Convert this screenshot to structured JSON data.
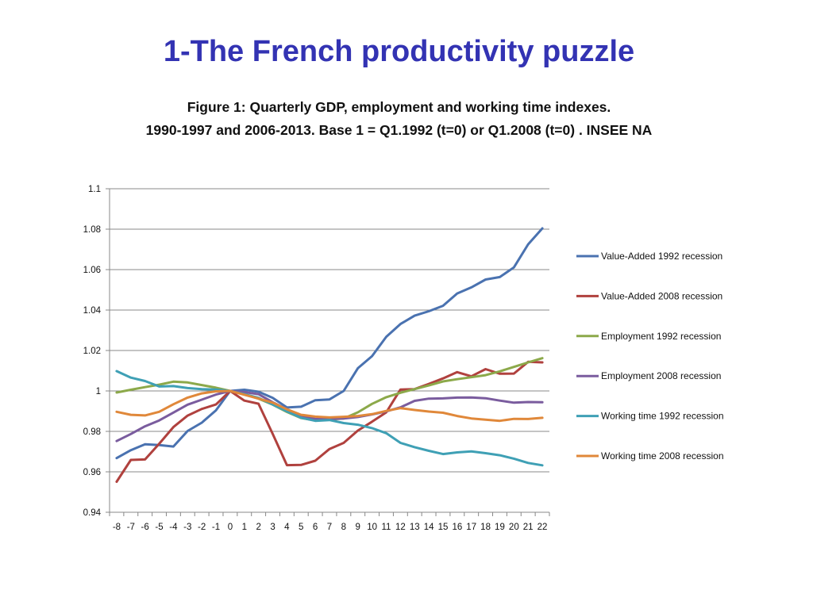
{
  "slide": {
    "title": "1-The French productivity puzzle",
    "subtitle_line1": "Figure 1: Quarterly GDP, employment and working time indexes.",
    "subtitle_line2": "1990-1997 and 2006-2013. Base 1 = Q1.1992 (t=0) or Q1.2008 (t=0) . INSEE NA"
  },
  "chart_data": {
    "type": "line",
    "title": "",
    "xlabel": "",
    "ylabel": "",
    "x": [
      -8,
      -7,
      -6,
      -5,
      -4,
      -3,
      -2,
      -1,
      0,
      1,
      2,
      3,
      4,
      5,
      6,
      7,
      8,
      9,
      10,
      11,
      12,
      13,
      14,
      15,
      16,
      17,
      18,
      19,
      20,
      21,
      22
    ],
    "ylim": [
      0.94,
      1.1
    ],
    "yticks": [
      0.94,
      0.96,
      0.98,
      1,
      1.02,
      1.04,
      1.06,
      1.08,
      1.1
    ],
    "ytick_labels": [
      "0.94",
      "0.96",
      "0.98",
      "1",
      "1.02",
      "1.04",
      "1.06",
      "1.08",
      "1.1"
    ],
    "grid": "horizontal",
    "legend": "right",
    "series": [
      {
        "name": "Value-Added 1992 recession",
        "color": "#4a72b0",
        "values": [
          0.9668,
          0.9707,
          0.9736,
          0.9732,
          0.9725,
          0.9802,
          0.9843,
          0.9904,
          1.0,
          1.0006,
          0.9996,
          0.9966,
          0.9918,
          0.9922,
          0.9954,
          0.9958,
          1.0,
          1.0112,
          1.0172,
          1.0268,
          1.0331,
          1.0372,
          1.0394,
          1.0421,
          1.0482,
          1.0512,
          1.0551,
          1.0563,
          1.0611,
          1.0725,
          1.0804
        ]
      },
      {
        "name": "Value-Added 2008 recession",
        "color": "#b0413e",
        "values": [
          0.9551,
          0.9659,
          0.9661,
          0.9739,
          0.9821,
          0.9878,
          0.9911,
          0.9933,
          1.0,
          0.9952,
          0.9937,
          0.9787,
          0.9633,
          0.9634,
          0.9655,
          0.9713,
          0.9743,
          0.9804,
          0.9848,
          0.9894,
          1.0007,
          1.0009,
          1.0035,
          1.0062,
          1.0093,
          1.0072,
          1.0108,
          1.0085,
          1.0086,
          1.0144,
          1.0141
        ]
      },
      {
        "name": "Employment 1992 recession",
        "color": "#8ca94a",
        "values": [
          0.9992,
          1.0006,
          1.0019,
          1.0031,
          1.0046,
          1.0042,
          1.0029,
          1.0016,
          1.0,
          0.9984,
          0.9962,
          0.9932,
          0.9896,
          0.9866,
          0.9855,
          0.9859,
          0.9864,
          0.9894,
          0.9936,
          0.9969,
          0.9991,
          1.0009,
          1.0027,
          1.0047,
          1.0058,
          1.0068,
          1.0078,
          1.0097,
          1.0119,
          1.0141,
          1.0162
        ]
      },
      {
        "name": "Employment 2008 recession",
        "color": "#7a5c9e",
        "values": [
          0.9752,
          0.9787,
          0.9825,
          0.9854,
          0.9893,
          0.9932,
          0.9957,
          0.9982,
          1.0,
          0.9994,
          0.9984,
          0.9944,
          0.9909,
          0.9877,
          0.9862,
          0.9861,
          0.9864,
          0.9871,
          0.9884,
          0.9899,
          0.9919,
          0.9951,
          0.9962,
          0.9963,
          0.9967,
          0.9968,
          0.9964,
          0.9952,
          0.9942,
          0.9945,
          0.9944
        ]
      },
      {
        "name": "Working time 1992 recession",
        "color": "#3fa0b5",
        "values": [
          1.0098,
          1.0066,
          1.0049,
          1.0022,
          1.0024,
          1.0014,
          1.0009,
          1.0007,
          1.0,
          0.9984,
          0.9966,
          0.9933,
          0.9899,
          0.9867,
          0.9852,
          0.9856,
          0.9841,
          0.9833,
          0.9816,
          0.9791,
          0.9743,
          0.9722,
          0.9704,
          0.9688,
          0.9696,
          0.9701,
          0.9692,
          0.9682,
          0.9665,
          0.9644,
          0.9632
        ]
      },
      {
        "name": "Working time 2008 recession",
        "color": "#e0883a",
        "values": [
          0.9897,
          0.9882,
          0.9879,
          0.9897,
          0.9934,
          0.9967,
          0.9988,
          0.9998,
          1.0,
          0.9981,
          0.9962,
          0.9942,
          0.9909,
          0.9882,
          0.9873,
          0.9869,
          0.9872,
          0.9876,
          0.9885,
          0.9901,
          0.9915,
          0.9906,
          0.9898,
          0.9892,
          0.9876,
          0.9864,
          0.9858,
          0.9852,
          0.9862,
          0.9861,
          0.9867
        ]
      }
    ]
  }
}
